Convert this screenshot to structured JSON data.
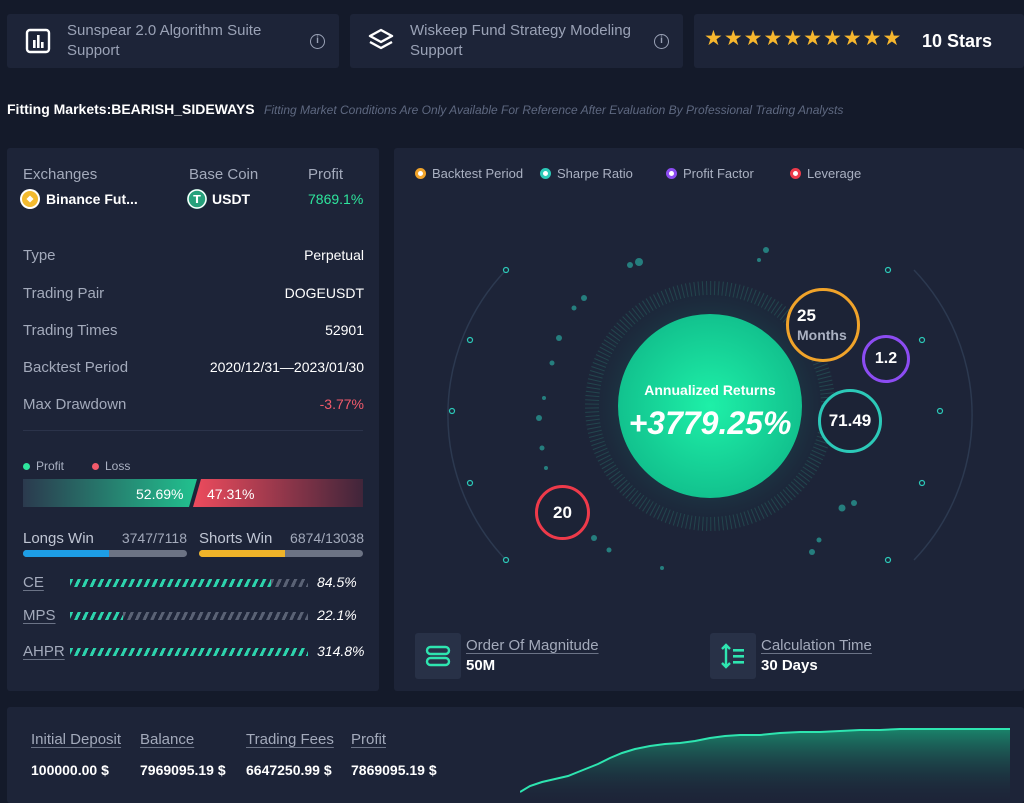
{
  "top_cards": [
    {
      "title": "Sunspear 2.0 Algorithm Suite Support",
      "icon": "bar-chart-icon"
    },
    {
      "title": "Wiskeep Fund Strategy Modeling Support",
      "icon": "layers-icon"
    }
  ],
  "rating": {
    "stars": 10,
    "label": "10 Stars"
  },
  "fitting": {
    "label": "Fitting Markets:BEARISH_SIDEWAYS",
    "note": "Fitting Market Conditions Are Only Available For Reference After Evaluation By Professional Trading Analysts"
  },
  "summary": {
    "exchanges_label": "Exchanges",
    "exchange": "Binance Fut...",
    "base_coin_label": "Base Coin",
    "base_coin": "USDT",
    "profit_label": "Profit",
    "profit": "7869.1%"
  },
  "details": [
    {
      "label": "Type",
      "value": "Perpetual"
    },
    {
      "label": "Trading Pair",
      "value": "DOGEUSDT"
    },
    {
      "label": "Trading Times",
      "value": "52901"
    },
    {
      "label": "Backtest Period",
      "value": "2020/12/31—2023/01/30"
    },
    {
      "label": "Max Drawdown",
      "value": "-3.77%"
    }
  ],
  "profit_loss": {
    "profit_label": "Profit",
    "loss_label": "Loss",
    "profit_pct": "52.69%",
    "loss_pct": "47.31%",
    "profit_fraction": 0.5269
  },
  "wins": {
    "longs_label": "Longs Win",
    "longs_value": "3747/7118",
    "longs_fraction": 0.526,
    "shorts_label": "Shorts Win",
    "shorts_value": "6874/13038",
    "shorts_fraction": 0.527
  },
  "metrics": [
    {
      "label": "CE",
      "value": "84.5%",
      "fraction": 0.845
    },
    {
      "label": "MPS",
      "value": "22.1%",
      "fraction": 0.221
    },
    {
      "label": "AHPR",
      "value": "314.8%",
      "fraction": 1.0
    }
  ],
  "legend": [
    {
      "label": "Backtest Period",
      "color": "#f0a32a"
    },
    {
      "label": "Sharpe Ratio",
      "color": "#2cc9b8"
    },
    {
      "label": "Profit Factor",
      "color": "#8c4cf2"
    },
    {
      "label": "Leverage",
      "color": "#ee3a4a"
    }
  ],
  "center": {
    "label": "Annualized Returns",
    "value": "+3779.25%"
  },
  "bubbles": {
    "months_value": "25",
    "months_label": "Months",
    "profit_factor": "1.2",
    "sharpe": "71.49",
    "leverage": "20"
  },
  "order": {
    "label": "Order Of Magnitude",
    "value": "50M"
  },
  "calc": {
    "label": "Calculation Time",
    "value": "30 Days"
  },
  "bottom": [
    {
      "label": "Initial Deposit",
      "value": "100000.00 $"
    },
    {
      "label": "Balance",
      "value": "7969095.19 $"
    },
    {
      "label": "Trading Fees",
      "value": "6647250.99 $"
    },
    {
      "label": "Profit",
      "value": "7869095.19 $"
    }
  ]
}
